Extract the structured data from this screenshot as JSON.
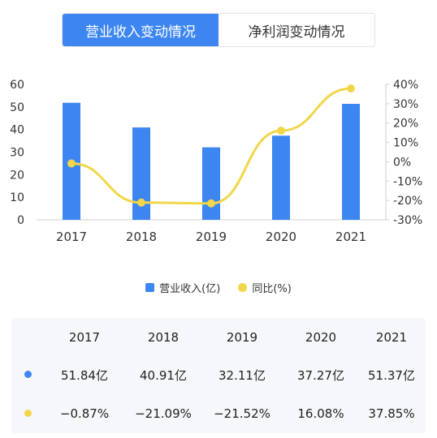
{
  "tabs": [
    {
      "label": "营业收入变动情况",
      "active": true
    },
    {
      "label": "净利润变动情况",
      "active": false
    }
  ],
  "colors": {
    "bar": "#3d86f2",
    "line": "#f2d649",
    "tab_active": "#3d86f2"
  },
  "chart_data": {
    "type": "bar+line",
    "categories": [
      "2017",
      "2018",
      "2019",
      "2020",
      "2021"
    ],
    "series": [
      {
        "name": "营业收入(亿)",
        "type": "bar",
        "axis": "left",
        "values": [
          51.84,
          40.91,
          32.11,
          37.27,
          51.37
        ]
      },
      {
        "name": "同比(%)",
        "type": "line",
        "axis": "right",
        "values": [
          -0.87,
          -21.09,
          -21.52,
          16.08,
          37.85
        ]
      }
    ],
    "left_axis": {
      "ylim": [
        0,
        60
      ],
      "ticks": [
        "0",
        "10",
        "20",
        "30",
        "40",
        "50",
        "60"
      ]
    },
    "right_axis": {
      "ylim": [
        -30,
        40
      ],
      "ticks": [
        "-30%",
        "-20%",
        "-10%",
        "0%",
        "10%",
        "20%",
        "30%",
        "40%"
      ]
    },
    "legend_position": "bottom",
    "grid": false
  },
  "legend": {
    "bar_label": "营业收入(亿)",
    "line_label": "同比(%)"
  },
  "table": {
    "years": [
      "2017",
      "2018",
      "2019",
      "2020",
      "2021"
    ],
    "revenue": [
      "51.84亿",
      "40.91亿",
      "32.11亿",
      "37.27亿",
      "51.37亿"
    ],
    "growth": [
      "−0.87%",
      "−21.09%",
      "−21.52%",
      "16.08%",
      "37.85%"
    ]
  }
}
